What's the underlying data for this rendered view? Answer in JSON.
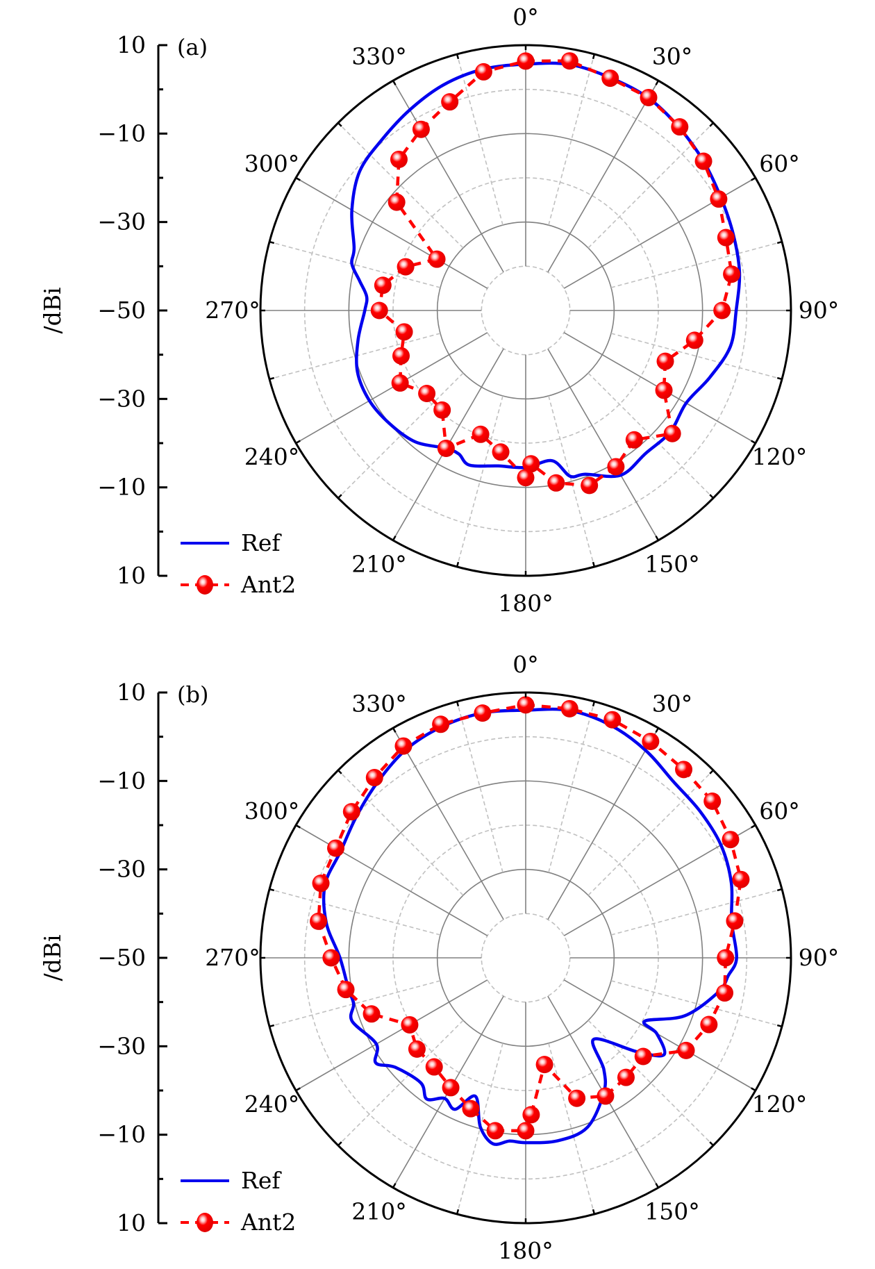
{
  "figure": {
    "axis_title": "/dBi",
    "angle_tick_labels": [
      "0°",
      "30°",
      "60°",
      "90°",
      "120°",
      "150°",
      "180°",
      "210°",
      "240°",
      "270°",
      "300°",
      "330°"
    ],
    "radial_tick_labels": [
      "10",
      "−10",
      "−30",
      "−50",
      "−30",
      "−10",
      "10"
    ],
    "colors": {
      "ref": "#0000ee",
      "ant2": "#ff0000",
      "grid_solid": "#808080",
      "grid_dashed": "#c0c0c0",
      "frame": "#000000"
    }
  },
  "chart_data": [
    {
      "type": "polar-line",
      "panel_label": "(a)",
      "title": "",
      "rlabel": "/dBi",
      "rlim": [
        -50,
        10
      ],
      "rticks": [
        -40,
        -30,
        -20,
        -10,
        0,
        10
      ],
      "rgrid_solid": [
        -30,
        -10
      ],
      "rgrid_dashed": [
        -40,
        -20,
        0
      ],
      "angle_direction": "clockwise",
      "angle_zero": "top",
      "angle_ticks": [
        0,
        30,
        60,
        90,
        120,
        150,
        180,
        210,
        240,
        270,
        300,
        330
      ],
      "grid": true,
      "legend": {
        "placement": "bottom-left",
        "entries": [
          "Ref",
          "Ant2"
        ]
      },
      "series": [
        {
          "name": "Ref",
          "style": "solid-line",
          "angles": [
            0,
            10,
            20,
            30,
            40,
            50,
            60,
            70,
            80,
            90,
            100,
            110,
            120,
            130,
            140,
            150,
            160,
            165,
            170,
            180,
            190,
            200,
            205,
            210,
            220,
            230,
            240,
            250,
            260,
            270,
            275,
            280,
            285,
            290,
            300,
            310,
            320,
            330,
            340,
            350
          ],
          "values": [
            5.7,
            6.5,
            6.0,
            5.5,
            4.0,
            2.5,
            1.0,
            0.0,
            -0.9,
            -2.4,
            -3.0,
            -5.7,
            -8.1,
            -7.3,
            -7.8,
            -7.0,
            -10.6,
            -11.2,
            -15.5,
            -14.5,
            -14.3,
            -12.8,
            -14.2,
            -14.0,
            -11.2,
            -10.0,
            -9.2,
            -9.5,
            -11.5,
            -13.6,
            -13.9,
            -11.9,
            -9.3,
            -8.7,
            -4.6,
            -1.0,
            0.5,
            2.4,
            4.3,
            5.4
          ]
        },
        {
          "name": "Ant2",
          "style": "dashed-line-with-sphere-markers",
          "angles": [
            0,
            10,
            20,
            30,
            40,
            50,
            60,
            70,
            80,
            90,
            100,
            110,
            120,
            130,
            140,
            150,
            160,
            170,
            178,
            180,
            190,
            200,
            210,
            220,
            230,
            240,
            250,
            260,
            270,
            280,
            290,
            300,
            310,
            320,
            330,
            340,
            350
          ],
          "values": [
            6.4,
            7.3,
            5.9,
            5.6,
            4.2,
            2.5,
            0.4,
            -1.8,
            -2.7,
            -5.6,
            -11.2,
            -16.4,
            -13.9,
            -6.7,
            -11.8,
            -9.2,
            -7.9,
            -10.4,
            -15.3,
            -12.2,
            -17.5,
            -20.2,
            -14.0,
            -20.6,
            -20.8,
            -17.2,
            -20.0,
            -22.1,
            -16.9,
            -17.2,
            -21.1,
            -26.8,
            -11.9,
            -5.4,
            -2.7,
            0.2,
            4.8
          ]
        }
      ]
    },
    {
      "type": "polar-line",
      "panel_label": "(b)",
      "title": "",
      "rlabel": "/dBi",
      "rlim": [
        -50,
        10
      ],
      "rticks": [
        -40,
        -30,
        -20,
        -10,
        0,
        10
      ],
      "rgrid_solid": [
        -30,
        -10
      ],
      "rgrid_dashed": [
        -40,
        -20,
        0
      ],
      "angle_direction": "clockwise",
      "angle_zero": "top",
      "angle_ticks": [
        0,
        30,
        60,
        90,
        120,
        150,
        180,
        210,
        240,
        270,
        300,
        330
      ],
      "grid": true,
      "legend": {
        "placement": "bottom-left",
        "entries": [
          "Ref",
          "Ant2"
        ]
      },
      "series": [
        {
          "name": "Ref",
          "style": "solid-line",
          "angles": [
            0,
            10,
            20,
            30,
            40,
            50,
            60,
            70,
            80,
            90,
            95,
            100,
            110,
            118,
            120,
            125,
            130,
            140,
            145,
            150,
            160,
            170,
            180,
            185,
            190,
            195,
            200,
            205,
            210,
            215,
            220,
            230,
            235,
            240,
            250,
            255,
            260,
            270,
            280,
            290,
            300,
            310,
            320,
            330,
            340,
            350
          ],
          "values": [
            6.0,
            6.8,
            6.0,
            4.2,
            2.0,
            1.5,
            1.0,
            -0.5,
            -2.7,
            -2.3,
            -4.0,
            -5.7,
            -11.7,
            -19.5,
            -15.8,
            -11.8,
            -16.9,
            -26.0,
            -19.2,
            -14.7,
            -9.2,
            -8.0,
            -8.2,
            -8.4,
            -7.3,
            -10.4,
            -16.7,
            -12.2,
            -13.3,
            -11.0,
            -13.1,
            -11.5,
            -8.6,
            -11.0,
            -8.2,
            -9.7,
            -9.3,
            -8.0,
            -4.2,
            -1.7,
            -1.7,
            -0.1,
            2.0,
            4.3,
            5.6,
            6.2
          ]
        },
        {
          "name": "Ant2",
          "style": "dashed-line-with-sphere-markers",
          "angles": [
            0,
            10,
            20,
            30,
            40,
            50,
            60,
            70,
            80,
            90,
            100,
            110,
            120,
            130,
            140,
            150,
            160,
            170,
            178,
            180,
            190,
            200,
            210,
            220,
            230,
            240,
            250,
            260,
            270,
            280,
            290,
            300,
            310,
            320,
            330,
            340,
            350
          ],
          "values": [
            7.2,
            7.2,
            7.3,
            6.5,
            5.6,
            5.1,
            3.5,
            1.8,
            -2.0,
            -4.8,
            -4.3,
            -5.9,
            -8.1,
            -15.3,
            -14.7,
            -13.9,
            -16.2,
            -25.5,
            -14.5,
            -10.9,
            -10.3,
            -13.7,
            -16.1,
            -17.8,
            -17.9,
            -19.7,
            -12.9,
            -8.7,
            -6.0,
            -2.4,
            -0.7,
            -0.4,
            1.4,
            3.2,
            5.3,
            6.2,
            6.2
          ]
        }
      ]
    }
  ]
}
